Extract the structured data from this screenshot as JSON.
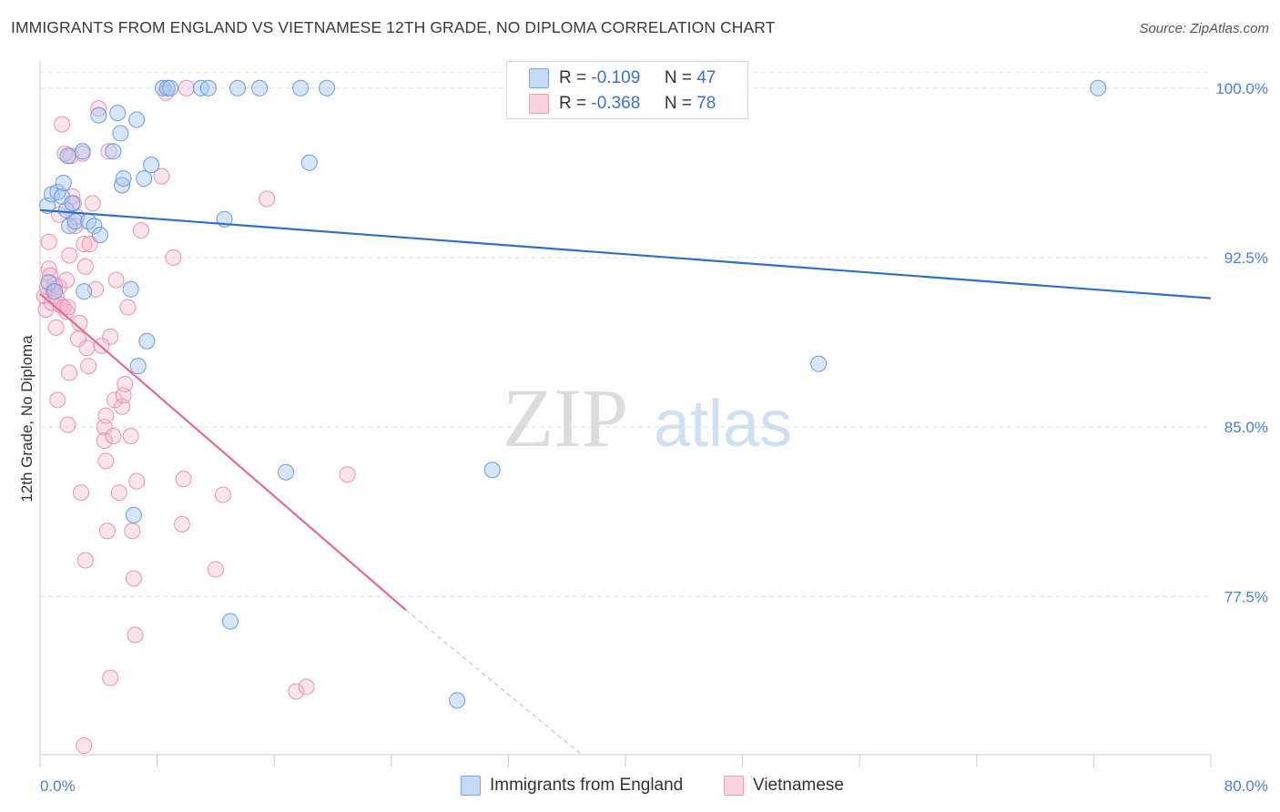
{
  "header": {
    "title": "IMMIGRANTS FROM ENGLAND VS VIETNAMESE 12TH GRADE, NO DIPLOMA CORRELATION CHART",
    "source": "Source: ZipAtlas.com"
  },
  "watermark": {
    "zip": "ZIP",
    "atlas": "atlas"
  },
  "legend_top": {
    "rows": [
      {
        "r_label": "R =",
        "r_value": "-0.109",
        "n_label": "N =",
        "n_value": "47",
        "color": "#a9c6ee"
      },
      {
        "r_label": "R =",
        "r_value": "-0.368",
        "n_label": "N =",
        "n_value": "78",
        "color": "#f5b3c8"
      }
    ]
  },
  "legend_bottom": {
    "items": [
      {
        "label": "Immigrants from England",
        "color": "#a9c6ee"
      },
      {
        "label": "Vietnamese",
        "color": "#f5b3c8"
      }
    ]
  },
  "chart_data": {
    "type": "scatter",
    "title": "IMMIGRANTS FROM ENGLAND VS VIETNAMESE 12TH GRADE, NO DIPLOMA CORRELATION CHART",
    "xlabel": "",
    "ylabel": "12th Grade, No Diploma",
    "xlim": [
      0,
      80
    ],
    "ylim": [
      70.5,
      101.2
    ],
    "x_tick_labels": [
      "0.0%",
      "80.0%"
    ],
    "y_tick_labels": [
      "77.5%",
      "85.0%",
      "92.5%",
      "100.0%"
    ],
    "y_ticks": [
      77.5,
      85.0,
      92.5,
      100.0
    ],
    "grid": "horizontal dashed",
    "legend_position": "top-center and bottom",
    "series": [
      {
        "name": "Immigrants from England",
        "color": "#6b9be0",
        "fill": "#a9c6ee",
        "points": [
          [
            0.5,
            94.8
          ],
          [
            0.6,
            91.4
          ],
          [
            0.8,
            95.3
          ],
          [
            1.0,
            91.0
          ],
          [
            1.2,
            95.4
          ],
          [
            1.5,
            95.2
          ],
          [
            1.6,
            95.8
          ],
          [
            1.8,
            94.6
          ],
          [
            1.9,
            97.0
          ],
          [
            2.0,
            93.9
          ],
          [
            2.2,
            94.9
          ],
          [
            2.4,
            94.1
          ],
          [
            2.9,
            97.2
          ],
          [
            3.3,
            94.1
          ],
          [
            3.7,
            93.9
          ],
          [
            4.1,
            93.5
          ],
          [
            5.0,
            97.2
          ],
          [
            4.0,
            98.8
          ],
          [
            5.3,
            98.9
          ],
          [
            5.5,
            98.0
          ],
          [
            5.6,
            95.7
          ],
          [
            5.7,
            96.0
          ],
          [
            6.2,
            91.1
          ],
          [
            6.6,
            98.6
          ],
          [
            7.1,
            96.0
          ],
          [
            7.6,
            96.6
          ],
          [
            8.4,
            100.0
          ],
          [
            8.7,
            100.0
          ],
          [
            8.9,
            100.0
          ],
          [
            11.0,
            100.0
          ],
          [
            11.5,
            100.0
          ],
          [
            13.5,
            100.0
          ],
          [
            15.0,
            100.0
          ],
          [
            17.8,
            100.0
          ],
          [
            19.6,
            100.0
          ],
          [
            7.3,
            88.8
          ],
          [
            6.7,
            87.7
          ],
          [
            6.4,
            81.1
          ],
          [
            12.6,
            94.2
          ],
          [
            18.4,
            96.7
          ],
          [
            16.8,
            83.0
          ],
          [
            30.9,
            83.1
          ],
          [
            53.2,
            87.8
          ],
          [
            13.0,
            76.4
          ],
          [
            28.5,
            72.9
          ],
          [
            72.3,
            100.0
          ],
          [
            3.0,
            91.0
          ]
        ],
        "trend": {
          "x0": 0.0,
          "y0": 94.6,
          "x1": 80.0,
          "y1": 90.7
        }
      },
      {
        "name": "Vietnamese",
        "color": "#e88aaa",
        "fill": "#f5b3c8",
        "points": [
          [
            0.3,
            90.8
          ],
          [
            0.4,
            90.2
          ],
          [
            0.5,
            91.2
          ],
          [
            0.6,
            93.2
          ],
          [
            0.6,
            92.0
          ],
          [
            0.7,
            91.7
          ],
          [
            0.8,
            90.5
          ],
          [
            0.9,
            91.0
          ],
          [
            1.0,
            91.3
          ],
          [
            1.1,
            90.8
          ],
          [
            1.1,
            89.4
          ],
          [
            1.3,
            91.2
          ],
          [
            1.4,
            90.4
          ],
          [
            1.6,
            90.3
          ],
          [
            1.8,
            90.1
          ],
          [
            1.9,
            90.3
          ],
          [
            1.2,
            86.2
          ],
          [
            1.3,
            94.4
          ],
          [
            1.5,
            98.4
          ],
          [
            1.7,
            97.1
          ],
          [
            1.8,
            91.5
          ],
          [
            2.0,
            92.6
          ],
          [
            2.0,
            87.4
          ],
          [
            1.9,
            85.1
          ],
          [
            2.1,
            97.0
          ],
          [
            2.2,
            95.2
          ],
          [
            2.3,
            94.9
          ],
          [
            2.4,
            93.9
          ],
          [
            2.5,
            94.3
          ],
          [
            2.6,
            88.9
          ],
          [
            2.7,
            89.6
          ],
          [
            2.8,
            82.1
          ],
          [
            2.9,
            97.1
          ],
          [
            3.0,
            93.1
          ],
          [
            3.1,
            92.1
          ],
          [
            3.2,
            88.5
          ],
          [
            3.3,
            87.7
          ],
          [
            3.4,
            93.1
          ],
          [
            3.6,
            94.9
          ],
          [
            3.8,
            91.1
          ],
          [
            4.0,
            99.1
          ],
          [
            4.2,
            88.6
          ],
          [
            4.4,
            84.4
          ],
          [
            4.4,
            85.0
          ],
          [
            4.5,
            85.5
          ],
          [
            4.5,
            83.5
          ],
          [
            4.6,
            80.4
          ],
          [
            4.7,
            97.2
          ],
          [
            4.8,
            89.0
          ],
          [
            5.0,
            84.6
          ],
          [
            5.1,
            86.2
          ],
          [
            5.2,
            91.5
          ],
          [
            5.4,
            82.1
          ],
          [
            5.6,
            85.9
          ],
          [
            5.7,
            86.4
          ],
          [
            5.8,
            86.9
          ],
          [
            6.0,
            90.3
          ],
          [
            6.2,
            84.6
          ],
          [
            6.3,
            80.4
          ],
          [
            6.4,
            78.3
          ],
          [
            6.5,
            75.8
          ],
          [
            6.6,
            82.6
          ],
          [
            6.9,
            93.7
          ],
          [
            8.3,
            96.1
          ],
          [
            8.6,
            99.8
          ],
          [
            9.1,
            92.5
          ],
          [
            9.7,
            80.7
          ],
          [
            9.8,
            82.7
          ],
          [
            10.0,
            100.0
          ],
          [
            12.0,
            78.7
          ],
          [
            12.5,
            82.0
          ],
          [
            15.5,
            95.1
          ],
          [
            17.5,
            73.3
          ],
          [
            18.2,
            73.5
          ],
          [
            21.0,
            82.9
          ],
          [
            3.1,
            79.1
          ],
          [
            4.8,
            73.9
          ],
          [
            3.0,
            70.9
          ]
        ],
        "trend": {
          "x0": 0.0,
          "y0": 90.9,
          "x1": 25.0,
          "y1": 76.9
        },
        "trend_extension": {
          "x0": 25.0,
          "y0": 76.9,
          "x1": 37.0,
          "y1": 70.5
        }
      }
    ]
  }
}
